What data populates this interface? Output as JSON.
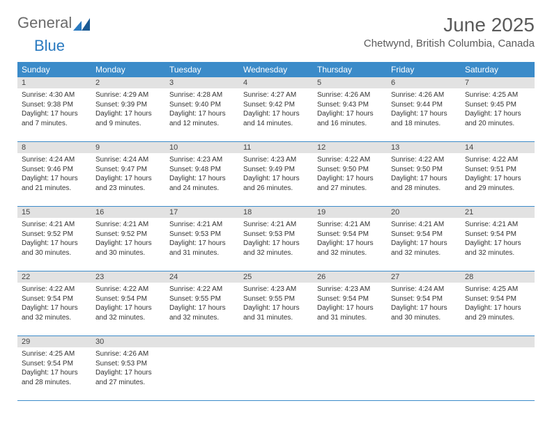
{
  "logo": {
    "part1": "General",
    "part2": "Blue"
  },
  "title": "June 2025",
  "location": "Chetwynd, British Columbia, Canada",
  "colors": {
    "header_bg": "#3b8bc9",
    "header_text": "#ffffff",
    "daynum_bg": "#e2e2e2",
    "border": "#3b8bc9",
    "title_color": "#5a5a5a",
    "logo_gray": "#6b6b6b",
    "logo_blue": "#2a7ac0"
  },
  "dayNames": [
    "Sunday",
    "Monday",
    "Tuesday",
    "Wednesday",
    "Thursday",
    "Friday",
    "Saturday"
  ],
  "weeks": [
    [
      {
        "n": "1",
        "sr": "4:30 AM",
        "ss": "9:38 PM",
        "dl": "17 hours and 7 minutes."
      },
      {
        "n": "2",
        "sr": "4:29 AM",
        "ss": "9:39 PM",
        "dl": "17 hours and 9 minutes."
      },
      {
        "n": "3",
        "sr": "4:28 AM",
        "ss": "9:40 PM",
        "dl": "17 hours and 12 minutes."
      },
      {
        "n": "4",
        "sr": "4:27 AM",
        "ss": "9:42 PM",
        "dl": "17 hours and 14 minutes."
      },
      {
        "n": "5",
        "sr": "4:26 AM",
        "ss": "9:43 PM",
        "dl": "17 hours and 16 minutes."
      },
      {
        "n": "6",
        "sr": "4:26 AM",
        "ss": "9:44 PM",
        "dl": "17 hours and 18 minutes."
      },
      {
        "n": "7",
        "sr": "4:25 AM",
        "ss": "9:45 PM",
        "dl": "17 hours and 20 minutes."
      }
    ],
    [
      {
        "n": "8",
        "sr": "4:24 AM",
        "ss": "9:46 PM",
        "dl": "17 hours and 21 minutes."
      },
      {
        "n": "9",
        "sr": "4:24 AM",
        "ss": "9:47 PM",
        "dl": "17 hours and 23 minutes."
      },
      {
        "n": "10",
        "sr": "4:23 AM",
        "ss": "9:48 PM",
        "dl": "17 hours and 24 minutes."
      },
      {
        "n": "11",
        "sr": "4:23 AM",
        "ss": "9:49 PM",
        "dl": "17 hours and 26 minutes."
      },
      {
        "n": "12",
        "sr": "4:22 AM",
        "ss": "9:50 PM",
        "dl": "17 hours and 27 minutes."
      },
      {
        "n": "13",
        "sr": "4:22 AM",
        "ss": "9:50 PM",
        "dl": "17 hours and 28 minutes."
      },
      {
        "n": "14",
        "sr": "4:22 AM",
        "ss": "9:51 PM",
        "dl": "17 hours and 29 minutes."
      }
    ],
    [
      {
        "n": "15",
        "sr": "4:21 AM",
        "ss": "9:52 PM",
        "dl": "17 hours and 30 minutes."
      },
      {
        "n": "16",
        "sr": "4:21 AM",
        "ss": "9:52 PM",
        "dl": "17 hours and 30 minutes."
      },
      {
        "n": "17",
        "sr": "4:21 AM",
        "ss": "9:53 PM",
        "dl": "17 hours and 31 minutes."
      },
      {
        "n": "18",
        "sr": "4:21 AM",
        "ss": "9:53 PM",
        "dl": "17 hours and 32 minutes."
      },
      {
        "n": "19",
        "sr": "4:21 AM",
        "ss": "9:54 PM",
        "dl": "17 hours and 32 minutes."
      },
      {
        "n": "20",
        "sr": "4:21 AM",
        "ss": "9:54 PM",
        "dl": "17 hours and 32 minutes."
      },
      {
        "n": "21",
        "sr": "4:21 AM",
        "ss": "9:54 PM",
        "dl": "17 hours and 32 minutes."
      }
    ],
    [
      {
        "n": "22",
        "sr": "4:22 AM",
        "ss": "9:54 PM",
        "dl": "17 hours and 32 minutes."
      },
      {
        "n": "23",
        "sr": "4:22 AM",
        "ss": "9:54 PM",
        "dl": "17 hours and 32 minutes."
      },
      {
        "n": "24",
        "sr": "4:22 AM",
        "ss": "9:55 PM",
        "dl": "17 hours and 32 minutes."
      },
      {
        "n": "25",
        "sr": "4:23 AM",
        "ss": "9:55 PM",
        "dl": "17 hours and 31 minutes."
      },
      {
        "n": "26",
        "sr": "4:23 AM",
        "ss": "9:54 PM",
        "dl": "17 hours and 31 minutes."
      },
      {
        "n": "27",
        "sr": "4:24 AM",
        "ss": "9:54 PM",
        "dl": "17 hours and 30 minutes."
      },
      {
        "n": "28",
        "sr": "4:25 AM",
        "ss": "9:54 PM",
        "dl": "17 hours and 29 minutes."
      }
    ],
    [
      {
        "n": "29",
        "sr": "4:25 AM",
        "ss": "9:54 PM",
        "dl": "17 hours and 28 minutes."
      },
      {
        "n": "30",
        "sr": "4:26 AM",
        "ss": "9:53 PM",
        "dl": "17 hours and 27 minutes."
      },
      null,
      null,
      null,
      null,
      null
    ]
  ],
  "labels": {
    "sunrise": "Sunrise:",
    "sunset": "Sunset:",
    "daylight": "Daylight:"
  }
}
